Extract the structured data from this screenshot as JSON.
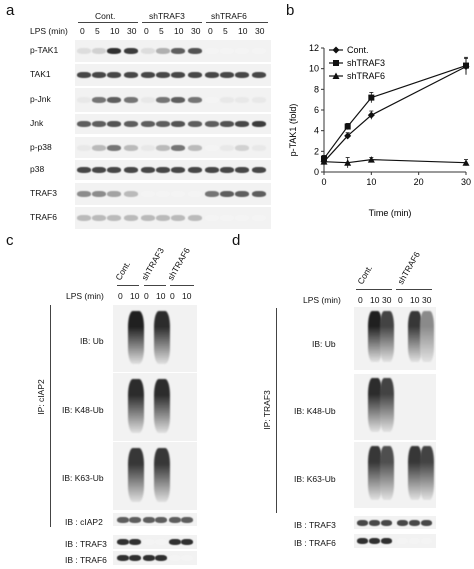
{
  "panels": {
    "a": "a",
    "b": "b",
    "c": "c",
    "d": "d"
  },
  "panel_a": {
    "groups": [
      "Cont.",
      "shTRAF3",
      "shTRAF6"
    ],
    "lps_label": "LPS (min)",
    "times": [
      "0",
      "5",
      "10",
      "30",
      "0",
      "5",
      "10",
      "30",
      "0",
      "5",
      "10",
      "30"
    ],
    "rows": [
      "p-TAK1",
      "TAK1",
      "p-Jnk",
      "Jnk",
      "p-p38",
      "p38",
      "TRAF3",
      "TRAF6"
    ]
  },
  "panel_c": {
    "columns": [
      "Cont.",
      "shTRAF3",
      "shTRAF6"
    ],
    "lps_label": "LPS (min)",
    "times": [
      "0",
      "10",
      "0",
      "10",
      "0",
      "10"
    ],
    "ip_label": "IP: cIAP2",
    "ib": [
      "IB: Ub",
      "IB: K48-Ub",
      "IB: K63-Ub"
    ],
    "bottom": [
      "IB : cIAP2",
      "IB : TRAF3",
      "IB : TRAF6"
    ]
  },
  "panel_d": {
    "columns": [
      "Cont.",
      "shTRAF6"
    ],
    "lps_label": "LPS (min)",
    "times": [
      "0",
      "10",
      "30",
      "0",
      "10",
      "30"
    ],
    "ip_label": "IP: TRAF3",
    "ib": [
      "IB: Ub",
      "IB: K48-Ub",
      "IB: K63-Ub"
    ],
    "bottom": [
      "IB : TRAF3",
      "IB : TRAF6"
    ]
  },
  "chart_data": {
    "type": "line",
    "xlabel": "Time (min)",
    "ylabel": "p-TAK1 (fold)",
    "x": [
      0,
      5,
      10,
      30
    ],
    "xlim": [
      0,
      30
    ],
    "ylim": [
      0,
      12
    ],
    "xticks": [
      0,
      10,
      20,
      30
    ],
    "yticks": [
      0,
      2,
      4,
      6,
      8,
      10,
      12
    ],
    "legend_position": "top-left",
    "series": [
      {
        "name": "Cont.",
        "marker": "diamond",
        "values": [
          1.0,
          3.5,
          5.5,
          10.2
        ]
      },
      {
        "name": "shTRAF3",
        "marker": "square",
        "values": [
          1.3,
          4.4,
          7.2,
          10.3
        ]
      },
      {
        "name": "shTRAF6",
        "marker": "triangle",
        "values": [
          1.0,
          0.9,
          1.2,
          0.9
        ]
      }
    ]
  }
}
